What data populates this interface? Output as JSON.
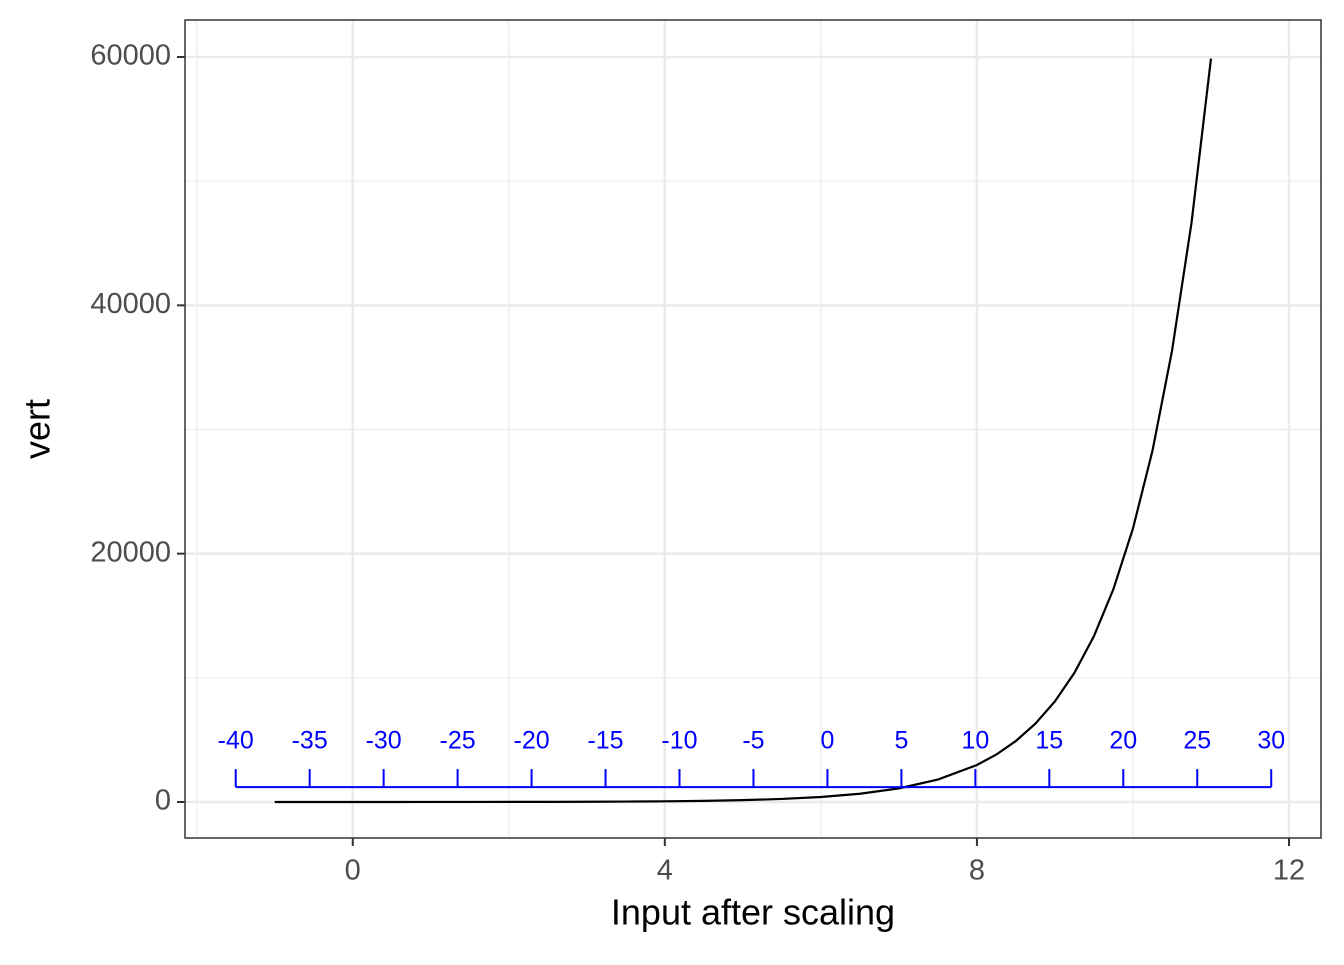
{
  "chart_data": {
    "type": "line",
    "x_label": "Input after scaling",
    "y_label": "vert",
    "x": [
      -1,
      -0.5,
      0,
      0.5,
      1,
      1.5,
      2,
      2.5,
      3,
      3.5,
      4,
      4.5,
      5,
      5.5,
      6,
      6.5,
      7,
      7.5,
      8,
      8.25,
      8.5,
      8.75,
      9,
      9.25,
      9.5,
      9.75,
      10,
      10.25,
      10.5,
      10.75,
      11
    ],
    "series": [
      {
        "color": "#000000",
        "values": [
          0.4,
          0.6,
          1,
          1.6,
          2.7,
          4.5,
          7.4,
          12,
          20,
          33,
          55,
          90,
          148,
          245,
          403,
          665,
          1097,
          1808,
          2981,
          3827,
          4915,
          6311,
          8103,
          10405,
          13360,
          17154,
          22026,
          28283,
          36316,
          46630,
          59874
        ]
      }
    ],
    "xlim": [
      -2.15,
      12.41
    ],
    "ylim": [
      -2900,
      62980
    ],
    "xticks": [
      0,
      4,
      8,
      12
    ],
    "yticks": [
      0,
      20000,
      40000,
      60000
    ],
    "xminor": [
      -2,
      2,
      6,
      10
    ],
    "yminor": [
      10000,
      30000,
      50000
    ],
    "grid": true,
    "scale_annotation": {
      "color": "#0000ff",
      "y": 1200,
      "values": [
        -40,
        -35,
        -30,
        -25,
        -20,
        -15,
        -10,
        -5,
        0,
        5,
        10,
        15,
        20,
        25,
        30
      ],
      "x": [
        -1.5,
        -0.552,
        0.396,
        1.344,
        2.292,
        3.24,
        4.188,
        5.136,
        6.084,
        7.032,
        7.98,
        8.928,
        9.876,
        10.824,
        11.772
      ]
    }
  }
}
